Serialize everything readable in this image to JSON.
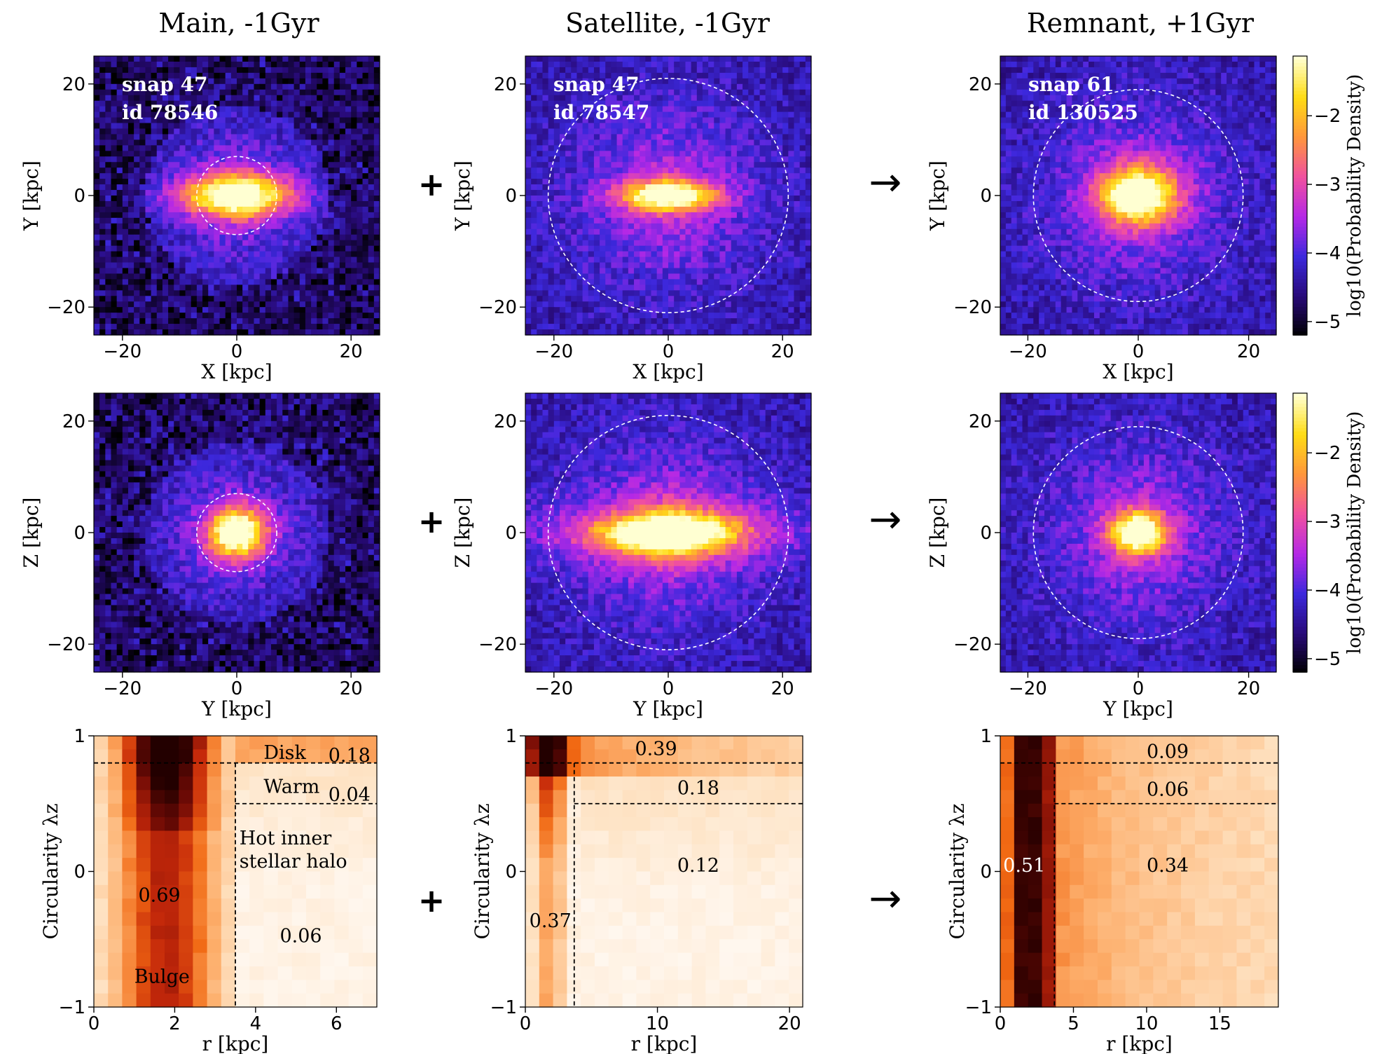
{
  "titles": [
    "Main, -1Gyr",
    "Satellite, -1Gyr",
    "Remnant, +1Gyr"
  ],
  "operators": {
    "plus": "+",
    "arrow": "→"
  },
  "panels_top": [
    {
      "snap": "snap 47",
      "id": "id 78546",
      "radius_kpc": 7,
      "ellipse": [
        7,
        2.6
      ]
    },
    {
      "snap": "snap 47",
      "id": "id 78547",
      "radius_kpc": 21,
      "ellipse": [
        6,
        1.8
      ]
    },
    {
      "snap": "snap 61",
      "id": "id 130525",
      "radius_kpc": 19,
      "ellipse": [
        5,
        3.5
      ]
    }
  ],
  "panels_mid": [
    {
      "radius_kpc": 7,
      "ellipse": [
        3.5,
        3.0
      ]
    },
    {
      "radius_kpc": 21,
      "ellipse": [
        8,
        2.2
      ]
    },
    {
      "radius_kpc": 19,
      "ellipse": [
        3.5,
        2.6
      ]
    }
  ],
  "axis_labels": {
    "top_x": "X [kpc]",
    "top_y": "Y [kpc]",
    "mid_x": "Y [kpc]",
    "mid_y": "Z [kpc]",
    "bot_x": "r [kpc]",
    "bot_y": "Circularity λz"
  },
  "colorbar": {
    "label": "log10(Probability Density)",
    "ticks": [
      "−2",
      "−3",
      "−4",
      "−5"
    ]
  },
  "chart_data": [
    {
      "type": "heatmap",
      "title": "Main, -1Gyr",
      "xlim": [
        0,
        7
      ],
      "ylim": [
        -1,
        1
      ],
      "xticks": [
        "0",
        "2",
        "4",
        "6"
      ],
      "yticks": [
        "1",
        "0",
        "−1"
      ],
      "r_cut": 3.5,
      "lines": [
        0.8,
        0.5
      ],
      "labels": [
        {
          "text": "Disk",
          "x": 4.2,
          "y": 0.88
        },
        {
          "text": "0.18",
          "x": 5.8,
          "y": 0.86
        },
        {
          "text": "Warm",
          "x": 4.2,
          "y": 0.63
        },
        {
          "text": "0.04",
          "x": 5.8,
          "y": 0.57
        },
        {
          "text": "Hot inner",
          "x": 3.6,
          "y": 0.25
        },
        {
          "text": "stellar halo",
          "x": 3.6,
          "y": 0.08
        },
        {
          "text": "0.69",
          "x": 1.1,
          "y": -0.17
        },
        {
          "text": "0.06",
          "x": 4.6,
          "y": -0.47
        },
        {
          "text": "Bulge",
          "x": 1.0,
          "y": -0.77
        }
      ]
    },
    {
      "type": "heatmap",
      "title": "Satellite, -1Gyr",
      "xlim": [
        0,
        21
      ],
      "ylim": [
        -1,
        1
      ],
      "xticks": [
        "0",
        "10",
        "20"
      ],
      "yticks": [
        "1",
        "0",
        "−1"
      ],
      "r_cut": 3.7,
      "lines": [
        0.8,
        0.5
      ],
      "labels": [
        {
          "text": "0.39",
          "x": 8.3,
          "y": 0.91
        },
        {
          "text": "0.18",
          "x": 11.5,
          "y": 0.62
        },
        {
          "text": "0.12",
          "x": 11.5,
          "y": 0.05
        },
        {
          "text": "0.37",
          "x": 0.3,
          "y": -0.36
        }
      ]
    },
    {
      "type": "heatmap",
      "title": "Remnant, +1Gyr",
      "xlim": [
        0,
        19
      ],
      "ylim": [
        -1,
        1
      ],
      "xticks": [
        "0",
        "5",
        "10",
        "15"
      ],
      "yticks": [
        "1",
        "0",
        "−1"
      ],
      "r_cut": 3.7,
      "lines": [
        0.8,
        0.5
      ],
      "labels": [
        {
          "text": "0.09",
          "x": 10,
          "y": 0.89
        },
        {
          "text": "0.06",
          "x": 10,
          "y": 0.61
        },
        {
          "text": "0.51",
          "x": 0.2,
          "y": 0.05
        },
        {
          "text": "0.34",
          "x": 10,
          "y": 0.05
        }
      ]
    }
  ],
  "map_axes": {
    "lim": [
      -25,
      25
    ],
    "ticks": [
      "−20",
      "0",
      "20"
    ]
  }
}
